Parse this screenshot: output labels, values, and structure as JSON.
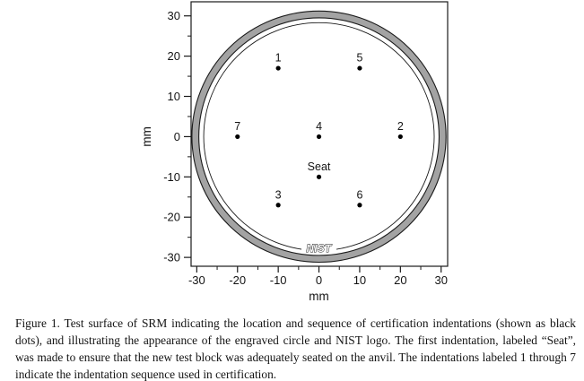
{
  "chart_data": {
    "type": "scatter",
    "title": "",
    "xlabel": "mm",
    "ylabel": "mm",
    "xlim": [
      -31.4,
      31.6
    ],
    "ylim": [
      -32.2,
      33.5
    ],
    "ticks_major": [
      -30,
      -20,
      -10,
      0,
      10,
      20,
      30
    ],
    "ticks_minor": [
      -25,
      -15,
      -5,
      5,
      15,
      25
    ],
    "grid": false,
    "point_color": "#000000",
    "points": [
      {
        "label": "Seat",
        "x": 0,
        "y": -10
      },
      {
        "label": "1",
        "x": -10,
        "y": 17
      },
      {
        "label": "2",
        "x": 20,
        "y": 0
      },
      {
        "label": "3",
        "x": -10,
        "y": -17
      },
      {
        "label": "4",
        "x": 0,
        "y": 0
      },
      {
        "label": "5",
        "x": 10,
        "y": 17
      },
      {
        "label": "6",
        "x": 10,
        "y": -17
      },
      {
        "label": "7",
        "x": -20,
        "y": 0
      }
    ],
    "engraved_circles": {
      "outer_radius_mm": 31.2,
      "ring_inner_radius_mm": 29.5,
      "thin_circle_radius_mm": 28.3,
      "ring_color": "#a3a3a3",
      "line_color": "#1a1a1a"
    },
    "logo_text": "NIST",
    "logo_position_mm": {
      "x": 0,
      "y": -27.7
    }
  },
  "caption": {
    "text": "Figure 1.  Test surface of SRM indicating the location and sequence of certification indentations (shown as black dots), and illustrating the appearance of the engraved circle and NIST logo.  The first indentation, labeled “Seat”, was made to ensure that the new test block was adequately seated on the anvil.  The indentations labeled 1 through 7 indicate the indentation sequence used in certification."
  }
}
